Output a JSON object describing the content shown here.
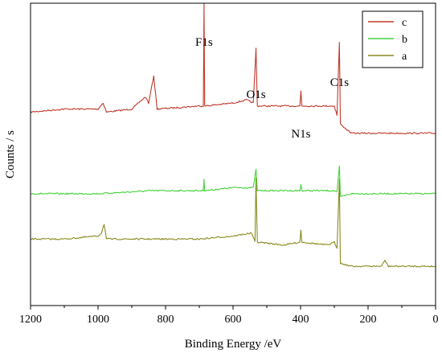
{
  "chart_data": {
    "type": "line",
    "xlabel": "Binding Energy /eV",
    "ylabel": "Counts / s",
    "xlim": [
      1200,
      0
    ],
    "x_reversed": true,
    "x_ticks": [
      1200,
      1000,
      800,
      600,
      400,
      200,
      0
    ],
    "y_ticks_shown": false,
    "grid": false,
    "legend_position": "top-right",
    "legend_order": [
      "c",
      "b",
      "a"
    ],
    "peak_labels": [
      {
        "text": "F1s",
        "x": 686
      },
      {
        "text": "O1s",
        "x": 532
      },
      {
        "text": "N1s",
        "x": 399
      },
      {
        "text": "C1s",
        "x": 284.8
      }
    ],
    "series": [
      {
        "name": "c",
        "color": "#c0392b",
        "points": [
          [
            1200,
            0.64
          ],
          [
            1100,
            0.65
          ],
          [
            1000,
            0.65
          ],
          [
            985,
            0.67
          ],
          [
            975,
            0.64
          ],
          [
            900,
            0.65
          ],
          [
            860,
            0.69
          ],
          [
            850,
            0.67
          ],
          [
            835,
            0.76
          ],
          [
            825,
            0.65
          ],
          [
            700,
            0.66
          ],
          [
            688,
            0.66
          ],
          [
            686,
            1.0
          ],
          [
            684,
            0.66
          ],
          [
            600,
            0.67
          ],
          [
            560,
            0.68
          ],
          [
            540,
            0.67
          ],
          [
            532,
            0.85
          ],
          [
            528,
            0.66
          ],
          [
            450,
            0.66
          ],
          [
            402,
            0.66
          ],
          [
            399,
            0.71
          ],
          [
            396,
            0.66
          ],
          [
            300,
            0.66
          ],
          [
            292,
            0.63
          ],
          [
            285,
            0.87
          ],
          [
            282,
            0.6
          ],
          [
            250,
            0.57
          ],
          [
            150,
            0.57
          ],
          [
            50,
            0.57
          ],
          [
            0,
            0.57
          ]
        ]
      },
      {
        "name": "b",
        "color": "#44d13a",
        "points": [
          [
            1200,
            0.37
          ],
          [
            1000,
            0.37
          ],
          [
            840,
            0.38
          ],
          [
            700,
            0.38
          ],
          [
            688,
            0.38
          ],
          [
            686,
            0.42
          ],
          [
            684,
            0.38
          ],
          [
            600,
            0.39
          ],
          [
            540,
            0.39
          ],
          [
            532,
            0.45
          ],
          [
            528,
            0.38
          ],
          [
            402,
            0.38
          ],
          [
            399,
            0.4
          ],
          [
            396,
            0.38
          ],
          [
            300,
            0.38
          ],
          [
            292,
            0.375
          ],
          [
            285,
            0.46
          ],
          [
            282,
            0.36
          ],
          [
            250,
            0.37
          ],
          [
            100,
            0.37
          ],
          [
            0,
            0.37
          ]
        ]
      },
      {
        "name": "a",
        "color": "#8a8a1e",
        "points": [
          [
            1200,
            0.22
          ],
          [
            1100,
            0.22
          ],
          [
            1000,
            0.23
          ],
          [
            990,
            0.24
          ],
          [
            982,
            0.27
          ],
          [
            975,
            0.22
          ],
          [
            900,
            0.22
          ],
          [
            700,
            0.22
          ],
          [
            600,
            0.23
          ],
          [
            545,
            0.24
          ],
          [
            535,
            0.21
          ],
          [
            532,
            0.42
          ],
          [
            528,
            0.21
          ],
          [
            450,
            0.2
          ],
          [
            402,
            0.21
          ],
          [
            399,
            0.25
          ],
          [
            396,
            0.21
          ],
          [
            320,
            0.2
          ],
          [
            300,
            0.21
          ],
          [
            292,
            0.19
          ],
          [
            285,
            0.42
          ],
          [
            282,
            0.14
          ],
          [
            250,
            0.13
          ],
          [
            160,
            0.13
          ],
          [
            150,
            0.15
          ],
          [
            140,
            0.13
          ],
          [
            0,
            0.13
          ]
        ]
      }
    ]
  }
}
